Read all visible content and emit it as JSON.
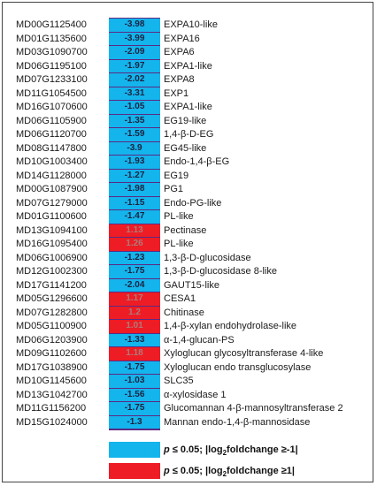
{
  "colors": {
    "down": "#14b4ec",
    "up": "#ee1c24"
  },
  "rows": [
    {
      "id": "MD00G1125400",
      "value": "-3.98",
      "name": "EXPA10-like",
      "dir": "down"
    },
    {
      "id": "MD01G1135600",
      "value": "-3.99",
      "name": "EXPA16",
      "dir": "down"
    },
    {
      "id": "MD03G1090700",
      "value": "-2.09",
      "name": "EXPA6",
      "dir": "down"
    },
    {
      "id": "MD06G1195100",
      "value": "-1.97",
      "name": "EXPA1-like",
      "dir": "down"
    },
    {
      "id": "MD07G1233100",
      "value": "-2.02",
      "name": "EXPA8",
      "dir": "down"
    },
    {
      "id": "MD11G1054500",
      "value": "-3.31",
      "name": "EXP1",
      "dir": "down"
    },
    {
      "id": "MD16G1070600",
      "value": "-1.05",
      "name": "EXPA1-like",
      "dir": "down"
    },
    {
      "id": "MD06G1105900",
      "value": "-1.35",
      "name": "EG19-like",
      "dir": "down"
    },
    {
      "id": "MD06G1120700",
      "value": "-1.59",
      "name": "1,4-β-D-EG",
      "dir": "down"
    },
    {
      "id": "MD08G1147800",
      "value": "-3.9",
      "name": "EG45-like",
      "dir": "down"
    },
    {
      "id": "MD10G1003400",
      "value": "-1.93",
      "name": "Endo-1,4-β-EG",
      "dir": "down"
    },
    {
      "id": "MD14G1128000",
      "value": "-1.27",
      "name": "EG19",
      "dir": "down"
    },
    {
      "id": "MD00G1087900",
      "value": "-1.98",
      "name": "PG1",
      "dir": "down"
    },
    {
      "id": "MD07G1279000",
      "value": "-1.15",
      "name": "Endo-PG-like",
      "dir": "down"
    },
    {
      "id": "MD01G1100600",
      "value": "-1.47",
      "name": "PL-like",
      "dir": "down"
    },
    {
      "id": "MD13G1094100",
      "value": "1.13",
      "name": "Pectinase",
      "dir": "up"
    },
    {
      "id": "MD16G1095400",
      "value": "1.26",
      "name": "PL-like",
      "dir": "up"
    },
    {
      "id": "MD06G1006900",
      "value": "-1.23",
      "name": "1,3-β-D-glucosidase",
      "dir": "down"
    },
    {
      "id": "MD12G1002300",
      "value": "-1.75",
      "name": "1,3-β-D-glucosidase 8-like",
      "dir": "down"
    },
    {
      "id": "MD17G1141200",
      "value": "-2.04",
      "name": "GAUT15-like",
      "dir": "down"
    },
    {
      "id": "MD05G1296600",
      "value": "1.17",
      "name": "CESA1",
      "dir": "up"
    },
    {
      "id": "MD07G1282800",
      "value": "1.2",
      "name": "Chitinase",
      "dir": "up"
    },
    {
      "id": "MD05G1100900",
      "value": "1.01",
      "name": "1,4-β-xylan endohydrolase-like",
      "dir": "up"
    },
    {
      "id": "MD06G1203900",
      "value": "-1.33",
      "name": "α-1,4-glucan-PS",
      "dir": "down"
    },
    {
      "id": "MD09G1102600",
      "value": "1.18",
      "name": "Xyloglucan glycosyltransferase 4-like",
      "dir": "up"
    },
    {
      "id": "MD17G1038900",
      "value": "-1.75",
      "name": "Xyloglucan endo transglucosylase",
      "dir": "down"
    },
    {
      "id": "MD10G1145600",
      "value": "-1.03",
      "name": "SLC35",
      "dir": "down"
    },
    {
      "id": "MD13G1042700",
      "value": "-1.56",
      "name": "α-xylosidase 1",
      "dir": "down"
    },
    {
      "id": "MD11G1156200",
      "value": "-1.75",
      "name": "Glucomannan 4-β-mannosyltransferase 2",
      "dir": "down"
    },
    {
      "id": "MD15G1024000",
      "value": "-1.3",
      "name": "Mannan endo-1,4-β-mannosidase",
      "dir": "down"
    }
  ],
  "legend": {
    "down_label": "p ≤ 0.05; |log2foldchange ≥-1|",
    "up_label": "p ≤ 0.05; |log2foldchange ≥1|"
  }
}
